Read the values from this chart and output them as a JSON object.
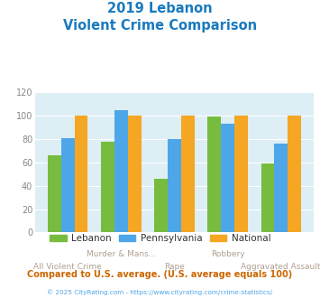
{
  "title_line1": "2019 Lebanon",
  "title_line2": "Violent Crime Comparison",
  "title_color": "#1a7abf",
  "categories": [
    "All Violent Crime",
    "Murder & Mans...",
    "Rape",
    "Robbery",
    "Aggravated Assault"
  ],
  "lebanon_values": [
    66,
    78,
    46,
    99,
    59
  ],
  "pennsylvania_values": [
    81,
    105,
    80,
    93,
    76
  ],
  "national_values": [
    100,
    100,
    100,
    100,
    100
  ],
  "lebanon_color": "#77bc3f",
  "pennsylvania_color": "#4da6e8",
  "national_color": "#f5a623",
  "ylim": [
    0,
    120
  ],
  "yticks": [
    0,
    20,
    40,
    60,
    80,
    100,
    120
  ],
  "bg_color": "#ddeef5",
  "legend_labels": [
    "Lebanon",
    "Pennsylvania",
    "National"
  ],
  "footer_text": "Compared to U.S. average. (U.S. average equals 100)",
  "footer_color": "#cc6600",
  "copyright_text": "© 2025 CityRating.com - https://www.cityrating.com/crime-statistics/",
  "copyright_color": "#4da6e8",
  "bar_width": 0.25,
  "top_labels": {
    "1": "Murder & Mans...",
    "3": "Robbery"
  },
  "bottom_labels": {
    "0": "All Violent Crime",
    "2": "Rape",
    "4": "Aggravated Assault"
  },
  "label_color": "#b0a090",
  "title_fontsize": 10.5,
  "ylabel_fontsize": 7,
  "label_fontsize": 6.5
}
